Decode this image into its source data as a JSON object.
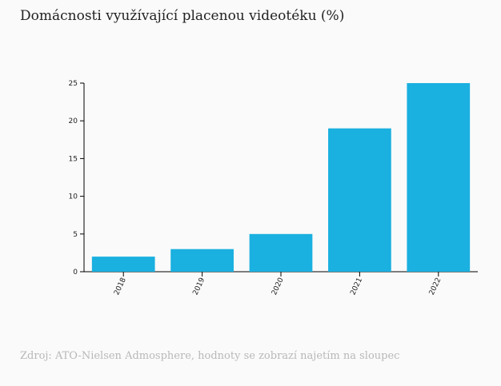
{
  "title": "Domácnosti využívající placenou videotéku (%)",
  "source": "Zdroj: ATO-Nielsen Admosphere, hodnoty se zobrazí najetím na sloupec",
  "chart_data": {
    "type": "bar",
    "title": "Domácnosti využívající placenou videotéku (%)",
    "categories": [
      "2018",
      "2019",
      "2020",
      "2021",
      "2022"
    ],
    "values": [
      2,
      3,
      5,
      19,
      25
    ],
    "xlabel": "",
    "ylabel": "",
    "ylim": [
      0,
      25
    ],
    "yticks": [
      0,
      5,
      10,
      15,
      20,
      25
    ],
    "bar_color": "#1ab0e0",
    "grid": false,
    "legend": "none"
  }
}
